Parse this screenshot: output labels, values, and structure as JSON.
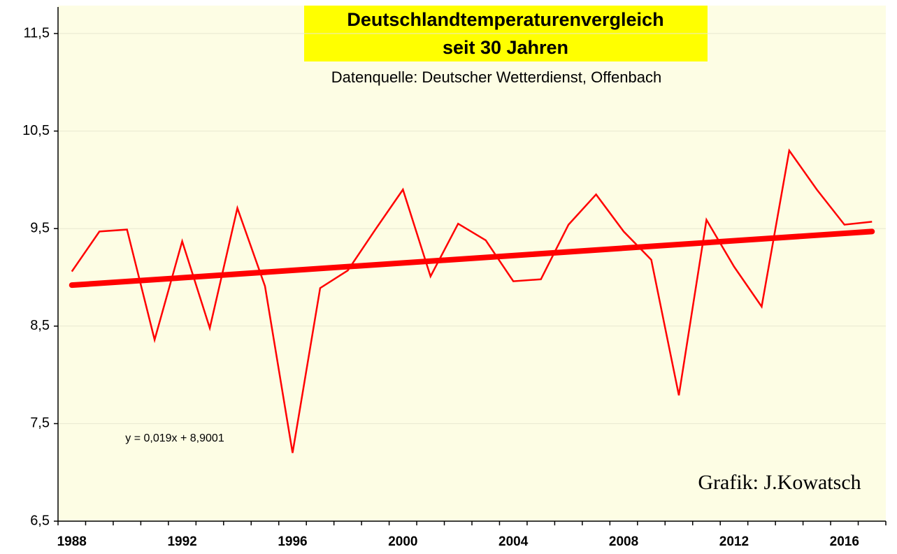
{
  "chart_data": {
    "type": "line",
    "title": "Deutschlandtemperaturenvergleich",
    "title_line2": "seit 30 Jahren",
    "subtitle": "Datenquelle: Deutscher Wetterdienst, Offenbach",
    "equation": "y = 0,019x + 8,9001",
    "credit": "Grafik: J.Kowatsch",
    "categories": [
      "1988",
      null,
      null,
      null,
      "1992",
      null,
      null,
      null,
      "1996",
      null,
      null,
      null,
      "2000",
      null,
      null,
      null,
      "2004",
      null,
      null,
      null,
      "2008",
      null,
      null,
      null,
      "2012",
      null,
      null,
      null,
      "2016",
      null
    ],
    "series": [
      {
        "color": "#ff0000",
        "values": [
          9.06,
          9.47,
          9.49,
          8.36,
          9.37,
          8.48,
          9.71,
          8.91,
          7.2,
          8.89,
          9.07,
          9.49,
          9.9,
          9.01,
          9.55,
          9.38,
          8.96,
          8.98,
          9.54,
          9.85,
          9.47,
          9.18,
          7.79,
          9.59,
          9.11,
          8.7,
          10.3,
          9.9,
          9.54,
          9.57
        ]
      }
    ],
    "trend": {
      "color": "#ff0000",
      "start": 8.92,
      "end": 9.47
    },
    "ylim": [
      6.5,
      11.5
    ],
    "yticks": [
      {
        "value": 6.5,
        "label": "6,5"
      },
      {
        "value": 7.5,
        "label": "7,5"
      },
      {
        "value": 8.5,
        "label": "8,5"
      },
      {
        "value": 9.5,
        "label": "9,5"
      },
      {
        "value": 10.5,
        "label": "10,5"
      },
      {
        "value": 11.5,
        "label": "11,5"
      }
    ],
    "grid": true
  }
}
